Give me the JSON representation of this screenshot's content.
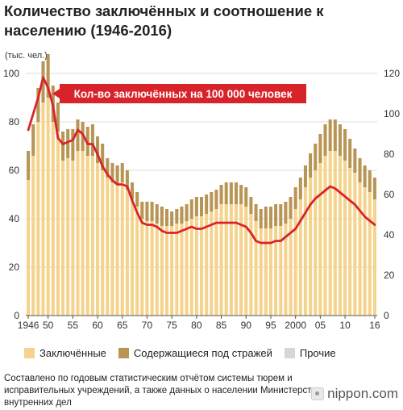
{
  "header": {
    "title": "Количество заключённых и соотношение к населению (1946-2016)",
    "unit_label": "(тыс. чел.)"
  },
  "legend": {
    "items": [
      {
        "label": "Заключённые",
        "color": "#f5d38c"
      },
      {
        "label": "Содержащиеся под стражей",
        "color": "#b89555"
      },
      {
        "label": "Прочие",
        "color": "#d6d6d6"
      }
    ]
  },
  "footer": {
    "source": "Составлено по годовым статистическим отчётом системы тюрем и исправительных учреждений, а также данных о населении Министерства внутренних дел",
    "logo_text": "nippon.com"
  },
  "chart_data": {
    "type": "bar",
    "stacked": true,
    "x": [
      1946,
      1947,
      1948,
      1949,
      1950,
      1951,
      1952,
      1953,
      1954,
      1955,
      1956,
      1957,
      1958,
      1959,
      1960,
      1961,
      1962,
      1963,
      1964,
      1965,
      1966,
      1967,
      1968,
      1969,
      1970,
      1971,
      1972,
      1973,
      1974,
      1975,
      1976,
      1977,
      1978,
      1979,
      1980,
      1981,
      1982,
      1983,
      1984,
      1985,
      1986,
      1987,
      1988,
      1989,
      1990,
      1991,
      1992,
      1993,
      1994,
      1995,
      1996,
      1997,
      1998,
      1999,
      2000,
      2001,
      2002,
      2003,
      2004,
      2005,
      2006,
      2007,
      2008,
      2009,
      2010,
      2011,
      2012,
      2013,
      2014,
      2015,
      2016
    ],
    "x_tick_labels": [
      "1946",
      "50",
      "55",
      "60",
      "65",
      "70",
      "75",
      "80",
      "85",
      "90",
      "95",
      "2000",
      "05",
      "10",
      "16"
    ],
    "x_tick_years": [
      1946,
      1950,
      1955,
      1960,
      1965,
      1970,
      1975,
      1980,
      1985,
      1990,
      1995,
      2000,
      2005,
      2010,
      2016
    ],
    "series": [
      {
        "name": "Заключённые",
        "color": "#f5d38c",
        "values": [
          56,
          66,
          80,
          88,
          90,
          80,
          76,
          64,
          65,
          64,
          68,
          68,
          66,
          66,
          63,
          60,
          57,
          55,
          54,
          55,
          52,
          48,
          45,
          40,
          39,
          39,
          38,
          37,
          37,
          37,
          38,
          38,
          39,
          40,
          41,
          41,
          42,
          43,
          44,
          46,
          46,
          46,
          46,
          46,
          45,
          42,
          39,
          36,
          36,
          36,
          37,
          37,
          38,
          40,
          44,
          48,
          53,
          57,
          60,
          63,
          66,
          68,
          68,
          66,
          64,
          61,
          59,
          55,
          53,
          51,
          48
        ]
      },
      {
        "name": "Содержащиеся под стражей",
        "color": "#b89555",
        "values": [
          12,
          13,
          14,
          17,
          18,
          15,
          12,
          12,
          12,
          13,
          13,
          12,
          12,
          13,
          11,
          11,
          8,
          8,
          8,
          8,
          8,
          7,
          6,
          7,
          8,
          8,
          8,
          8,
          7,
          6,
          6,
          7,
          7,
          8,
          8,
          8,
          8,
          8,
          8,
          8,
          9,
          9,
          9,
          8,
          8,
          7,
          7,
          8,
          9,
          9,
          9,
          9,
          9,
          9,
          9,
          9,
          9,
          10,
          11,
          12,
          13,
          13,
          13,
          13,
          13,
          12,
          10,
          10,
          9,
          9,
          9
        ]
      },
      {
        "name": "Прочие",
        "color": "#d6d6d6",
        "values": [
          0,
          0,
          0,
          0,
          0,
          0,
          0,
          0,
          0,
          0,
          0,
          0,
          0,
          0,
          0,
          0,
          0,
          0,
          0,
          0,
          0,
          0,
          0,
          0,
          0,
          0,
          0,
          0,
          0,
          0,
          0,
          0,
          0,
          0,
          0,
          0,
          0,
          0,
          0,
          0,
          0,
          0,
          0,
          0,
          0,
          0,
          0,
          0,
          0,
          0,
          0,
          0,
          0,
          0,
          0,
          0,
          0,
          0,
          0,
          0,
          0,
          0,
          0,
          0,
          0,
          0,
          0,
          0,
          0,
          0,
          0
        ]
      },
      {
        "name": "Кол-во заключённых на 100 000 человек",
        "type": "line",
        "axis": "right",
        "color": "#d9232a",
        "values": [
          92,
          100,
          108,
          118,
          113,
          104,
          88,
          85,
          86,
          87,
          92,
          90,
          85,
          85,
          80,
          74,
          70,
          67,
          65,
          65,
          64,
          57,
          51,
          46,
          45,
          45,
          44,
          42,
          41,
          41,
          41,
          42,
          43,
          44,
          43,
          43,
          44,
          45,
          46,
          46,
          46,
          46,
          46,
          45,
          44,
          41,
          37,
          36,
          36,
          36,
          37,
          37,
          39,
          41,
          43,
          47,
          51,
          55,
          58,
          60,
          62,
          64,
          63,
          61,
          59,
          57,
          55,
          52,
          49,
          47,
          45
        ]
      }
    ],
    "line_label": "Кол-во заключённых на 100 000 человек",
    "y_left": {
      "ylim": [
        0,
        100
      ],
      "ticks": [
        0,
        20,
        40,
        60,
        80,
        100
      ]
    },
    "y_right": {
      "ylim": [
        0,
        120
      ],
      "ticks": [
        0,
        20,
        40,
        60,
        80,
        100,
        120
      ]
    },
    "grid": true
  }
}
